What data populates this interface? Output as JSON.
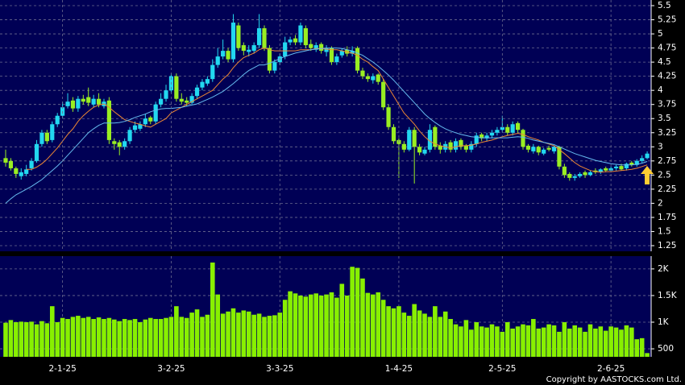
{
  "chart_data": [
    {
      "type": "candlestick",
      "up_color": "#22d8f0",
      "down_color": "#99ee22",
      "grid": true,
      "ylim": [
        1.15,
        5.6
      ],
      "yticks": [
        1.25,
        1.5,
        1.75,
        2,
        2.25,
        2.5,
        2.75,
        3,
        3.25,
        3.5,
        3.75,
        4,
        4.25,
        4.5,
        4.75,
        5,
        5.25,
        5.5
      ],
      "open": [
        2.8,
        2.75,
        2.62,
        2.48,
        2.52,
        2.62,
        2.75,
        3.05,
        3.25,
        3.12,
        3.4,
        3.55,
        3.72,
        3.82,
        3.68,
        3.85,
        3.88,
        3.75,
        3.85,
        3.72,
        3.82,
        3.1,
        3.08,
        3.0,
        3.1,
        3.3,
        3.32,
        3.4,
        3.52,
        3.45,
        3.75,
        3.85,
        4.0,
        4.25,
        3.85,
        3.82,
        3.78,
        3.9,
        4.05,
        4.12,
        4.2,
        4.45,
        4.6,
        4.7,
        4.55,
        5.15,
        4.8,
        4.68,
        4.7,
        4.8,
        5.1,
        4.75,
        4.35,
        4.5,
        4.6,
        4.85,
        4.92,
        4.85,
        5.1,
        4.82,
        4.72,
        4.82,
        4.68,
        4.75,
        4.5,
        4.62,
        4.72,
        4.65,
        4.75,
        4.35,
        4.25,
        4.18,
        4.28,
        4.15,
        3.7,
        3.35,
        3.12,
        3.05,
        2.95,
        3.3,
        3.0,
        2.88,
        2.95,
        3.35,
        3.02,
        2.95,
        3.08,
        2.95,
        3.12,
        3.02,
        2.95,
        3.05,
        3.22,
        3.15,
        3.2,
        3.25,
        3.3,
        3.35,
        3.25,
        3.42,
        3.3,
        3.02,
        2.92,
        3.0,
        2.88,
        2.98,
        2.92,
        3.0,
        2.65,
        2.52,
        2.45,
        2.48,
        2.55,
        2.5,
        2.58,
        2.55,
        2.62,
        2.58,
        2.62,
        2.66,
        2.62,
        2.72,
        2.68,
        2.75,
        2.8
      ],
      "high": [
        2.95,
        2.8,
        2.65,
        2.62,
        2.68,
        2.8,
        3.12,
        3.3,
        3.3,
        3.45,
        3.6,
        3.8,
        3.95,
        3.88,
        3.9,
        3.92,
        4.05,
        3.92,
        3.95,
        3.85,
        3.88,
        3.15,
        3.12,
        3.15,
        3.35,
        3.45,
        3.45,
        3.58,
        3.55,
        3.8,
        3.95,
        4.1,
        4.3,
        4.3,
        3.95,
        3.88,
        3.95,
        4.1,
        4.2,
        4.25,
        4.55,
        4.75,
        4.9,
        4.75,
        5.35,
        5.2,
        4.85,
        4.8,
        4.85,
        5.35,
        5.15,
        4.8,
        4.55,
        4.65,
        4.95,
        4.95,
        4.98,
        5.2,
        5.15,
        4.9,
        4.85,
        4.85,
        4.8,
        4.78,
        4.65,
        4.75,
        4.78,
        4.78,
        4.78,
        4.4,
        4.3,
        4.3,
        4.3,
        4.2,
        3.75,
        3.4,
        3.15,
        3.1,
        3.35,
        3.35,
        3.05,
        3.0,
        3.4,
        3.38,
        3.08,
        3.1,
        3.12,
        3.15,
        3.15,
        3.05,
        3.1,
        3.25,
        3.25,
        3.25,
        3.3,
        3.35,
        3.55,
        3.4,
        3.45,
        3.45,
        3.32,
        3.05,
        3.05,
        3.02,
        2.98,
        3.02,
        3.02,
        3.02,
        2.7,
        2.55,
        2.52,
        2.55,
        2.58,
        2.58,
        2.62,
        2.62,
        2.65,
        2.65,
        2.68,
        2.7,
        2.72,
        2.75,
        2.78,
        2.85,
        2.92
      ],
      "low": [
        2.65,
        2.58,
        2.45,
        2.42,
        2.48,
        2.58,
        2.72,
        3.0,
        3.05,
        3.08,
        3.35,
        3.5,
        3.68,
        3.62,
        3.62,
        3.75,
        3.72,
        3.7,
        3.7,
        3.68,
        3.05,
        2.95,
        2.85,
        2.95,
        3.05,
        3.25,
        3.28,
        3.35,
        3.4,
        3.4,
        3.7,
        3.8,
        3.95,
        3.8,
        3.75,
        3.72,
        3.75,
        3.85,
        4.0,
        4.08,
        4.15,
        4.4,
        4.55,
        4.5,
        4.5,
        4.7,
        4.62,
        4.6,
        4.65,
        4.75,
        4.7,
        4.3,
        4.3,
        4.45,
        4.55,
        4.8,
        4.8,
        4.8,
        4.75,
        4.7,
        4.68,
        4.65,
        4.6,
        4.45,
        4.45,
        4.58,
        4.6,
        4.6,
        4.3,
        4.2,
        4.15,
        4.12,
        4.1,
        3.65,
        3.3,
        3.05,
        2.45,
        2.9,
        2.92,
        2.35,
        2.85,
        2.85,
        2.9,
        2.95,
        2.88,
        2.9,
        2.9,
        2.9,
        2.95,
        2.9,
        2.9,
        3.0,
        3.1,
        3.1,
        3.15,
        3.2,
        3.25,
        3.2,
        3.2,
        3.25,
        2.95,
        2.9,
        2.88,
        2.85,
        2.85,
        2.92,
        2.88,
        2.6,
        2.45,
        2.4,
        2.4,
        2.45,
        2.45,
        2.48,
        2.52,
        2.52,
        2.55,
        2.55,
        2.58,
        2.58,
        2.58,
        2.65,
        2.65,
        2.72,
        2.78
      ],
      "close": [
        2.72,
        2.62,
        2.52,
        2.55,
        2.6,
        2.75,
        3.05,
        3.25,
        3.1,
        3.4,
        3.55,
        3.7,
        3.8,
        3.68,
        3.85,
        3.8,
        3.78,
        3.85,
        3.75,
        3.8,
        3.12,
        3.05,
        3.0,
        3.1,
        3.3,
        3.38,
        3.4,
        3.5,
        3.45,
        3.75,
        3.85,
        4.0,
        4.25,
        3.85,
        3.8,
        3.78,
        3.9,
        4.05,
        4.15,
        4.2,
        4.45,
        4.6,
        4.7,
        4.55,
        5.2,
        4.75,
        4.7,
        4.72,
        4.8,
        5.1,
        4.75,
        4.35,
        4.5,
        4.6,
        4.85,
        4.9,
        4.85,
        5.15,
        4.8,
        4.75,
        4.8,
        4.7,
        4.75,
        4.5,
        4.6,
        4.7,
        4.65,
        4.7,
        4.35,
        4.25,
        4.2,
        4.25,
        4.15,
        3.7,
        3.35,
        3.1,
        3.05,
        2.95,
        3.3,
        3.0,
        2.9,
        2.95,
        3.3,
        3.0,
        2.95,
        3.05,
        2.95,
        3.1,
        3.0,
        2.95,
        3.05,
        3.2,
        3.15,
        3.2,
        3.25,
        3.3,
        3.35,
        3.25,
        3.4,
        3.3,
        3.0,
        2.95,
        3.0,
        2.9,
        2.95,
        2.95,
        3.0,
        2.65,
        2.5,
        2.45,
        2.48,
        2.52,
        2.5,
        2.55,
        2.55,
        2.6,
        2.58,
        2.62,
        2.65,
        2.6,
        2.7,
        2.68,
        2.75,
        2.8,
        2.88
      ],
      "lines": [
        {
          "color": "#ee8833",
          "values": [
            null,
            null,
            null,
            null,
            2.6,
            2.6,
            2.64,
            2.7,
            2.78,
            2.88,
            2.98,
            3.1,
            3.22,
            3.32,
            3.45,
            3.55,
            3.63,
            3.7,
            3.74,
            3.76,
            3.7,
            3.62,
            3.55,
            3.48,
            3.45,
            3.42,
            3.4,
            3.37,
            3.35,
            3.4,
            3.45,
            3.5,
            3.6,
            3.65,
            3.7,
            3.75,
            3.8,
            3.85,
            3.9,
            3.95,
            4.0,
            4.1,
            4.2,
            4.28,
            4.4,
            4.5,
            4.58,
            4.62,
            4.66,
            4.72,
            4.75,
            4.72,
            4.7,
            4.7,
            4.7,
            4.7,
            4.7,
            4.72,
            4.72,
            4.72,
            4.74,
            4.74,
            4.73,
            4.72,
            4.72,
            4.7,
            4.68,
            4.66,
            4.62,
            4.55,
            4.5,
            4.42,
            4.35,
            4.2,
            4.05,
            3.9,
            3.75,
            3.6,
            3.5,
            3.4,
            3.28,
            3.18,
            3.1,
            3.05,
            3.02,
            3.0,
            2.98,
            3.0,
            3.02,
            3.02,
            3.03,
            3.05,
            3.08,
            3.1,
            3.12,
            3.15,
            3.18,
            3.2,
            3.22,
            3.24,
            3.22,
            3.18,
            3.15,
            3.12,
            3.08,
            3.05,
            3.02,
            2.95,
            2.88,
            2.8,
            2.72,
            2.66,
            2.62,
            2.58,
            2.56,
            2.55,
            2.56,
            2.56,
            2.57,
            2.58,
            2.59,
            2.6,
            2.62,
            2.65,
            2.68
          ]
        },
        {
          "color": "#66bbee",
          "values": [
            2.0,
            2.08,
            2.15,
            2.2,
            2.25,
            2.3,
            2.36,
            2.42,
            2.5,
            2.58,
            2.66,
            2.75,
            2.85,
            2.95,
            3.05,
            3.15,
            3.25,
            3.32,
            3.38,
            3.42,
            3.42,
            3.42,
            3.43,
            3.45,
            3.48,
            3.52,
            3.55,
            3.58,
            3.62,
            3.65,
            3.67,
            3.68,
            3.68,
            3.69,
            3.7,
            3.72,
            3.74,
            3.76,
            3.8,
            3.84,
            3.88,
            3.93,
            3.98,
            4.05,
            4.12,
            4.2,
            4.28,
            4.35,
            4.4,
            4.45,
            4.45,
            4.48,
            4.52,
            4.56,
            4.6,
            4.63,
            4.66,
            4.68,
            4.7,
            4.72,
            4.73,
            4.74,
            4.75,
            4.75,
            4.75,
            4.74,
            4.72,
            4.7,
            4.66,
            4.62,
            4.56,
            4.5,
            4.43,
            4.35,
            4.27,
            4.18,
            4.08,
            3.98,
            3.88,
            3.78,
            3.68,
            3.58,
            3.5,
            3.43,
            3.37,
            3.32,
            3.28,
            3.25,
            3.22,
            3.2,
            3.18,
            3.17,
            3.16,
            3.16,
            3.16,
            3.16,
            3.16,
            3.16,
            3.17,
            3.18,
            3.17,
            3.15,
            3.12,
            3.1,
            3.08,
            3.06,
            3.04,
            3.0,
            2.96,
            2.92,
            2.88,
            2.85,
            2.82,
            2.79,
            2.76,
            2.74,
            2.72,
            2.7,
            2.69,
            2.68,
            2.68,
            2.68,
            2.69,
            2.71,
            2.74
          ]
        }
      ]
    },
    {
      "type": "bar",
      "color": "#88f000",
      "grid": true,
      "ylim": [
        350,
        2240
      ],
      "yticks": [
        500,
        {
          "value": 1000,
          "label": "1K"
        },
        {
          "value": 1500,
          "label": "1.5K"
        },
        {
          "value": 2000,
          "label": "2K"
        }
      ],
      "categories": [
        null,
        null,
        null,
        null,
        null,
        null,
        null,
        null,
        null,
        null,
        null,
        "2-1-25",
        null,
        null,
        null,
        null,
        null,
        null,
        null,
        null,
        null,
        null,
        null,
        null,
        null,
        null,
        null,
        null,
        null,
        null,
        null,
        null,
        "3-2-25",
        null,
        null,
        null,
        null,
        null,
        null,
        null,
        null,
        null,
        null,
        null,
        null,
        null,
        null,
        null,
        null,
        null,
        null,
        null,
        null,
        "3-3-25",
        null,
        null,
        null,
        null,
        null,
        null,
        null,
        null,
        null,
        null,
        null,
        null,
        null,
        null,
        null,
        null,
        null,
        null,
        null,
        null,
        null,
        null,
        "1-4-25",
        null,
        null,
        null,
        null,
        null,
        null,
        null,
        null,
        null,
        null,
        null,
        null,
        null,
        null,
        null,
        null,
        null,
        null,
        null,
        "2-5-25",
        null,
        null,
        null,
        null,
        null,
        null,
        null,
        null,
        null,
        null,
        null,
        null,
        null,
        null,
        null,
        null,
        null,
        null,
        null,
        null,
        "2-6-25",
        null,
        null,
        null,
        null,
        null,
        null,
        null
      ],
      "values": [
        990,
        1040,
        1000,
        1010,
        1000,
        1010,
        960,
        1020,
        980,
        1300,
        1000,
        1080,
        1060,
        1100,
        1120,
        1080,
        1100,
        1060,
        1090,
        1060,
        1080,
        1050,
        1020,
        1060,
        1040,
        1060,
        1000,
        1050,
        1080,
        1060,
        1060,
        1080,
        1100,
        1300,
        1100,
        1080,
        1180,
        1240,
        1100,
        1140,
        2120,
        1520,
        1160,
        1200,
        1260,
        1180,
        1220,
        1200,
        1140,
        1160,
        1100,
        1120,
        1130,
        1180,
        1420,
        1580,
        1540,
        1500,
        1480,
        1520,
        1540,
        1500,
        1520,
        1560,
        1460,
        1720,
        1500,
        2040,
        2020,
        1820,
        1550,
        1520,
        1560,
        1420,
        1300,
        1260,
        1300,
        1180,
        1120,
        1340,
        1220,
        1160,
        1100,
        1300,
        1100,
        1200,
        1060,
        960,
        920,
        1040,
        860,
        1000,
        920,
        900,
        960,
        920,
        820,
        1000,
        880,
        920,
        960,
        940,
        1060,
        880,
        900,
        960,
        940,
        820,
        1000,
        880,
        940,
        900,
        820,
        960,
        880,
        920,
        840,
        920,
        900,
        860,
        940,
        900,
        680,
        700,
        420
      ]
    },
    {
      "copyright": "Copyright by AASTOCKS.com Ltd."
    }
  ]
}
